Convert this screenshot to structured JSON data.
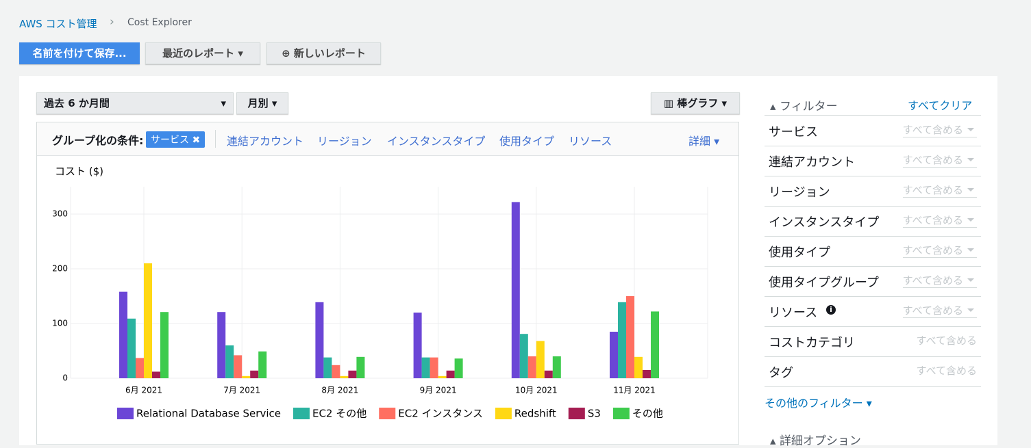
{
  "breadcrumb": {
    "home": "AWS コスト管理",
    "current": "Cost Explorer"
  },
  "buttons": {
    "save": "名前を付けて保存...",
    "recent": "最近のレポート",
    "new": "新しいレポート"
  },
  "controls": {
    "period": "過去 6 か月間",
    "granularity": "月別",
    "chart_type": "棒グラフ"
  },
  "group_by": {
    "label": "グループ化の条件:",
    "selected": "サービス",
    "options": [
      "連結アカウント",
      "リージョン",
      "インスタンスタイプ",
      "使用タイプ",
      "リソース"
    ],
    "more": "詳細"
  },
  "filters": {
    "title": "フィルター",
    "clear": "すべてクリア",
    "rows": [
      {
        "name": "サービス",
        "value": "すべて含める"
      },
      {
        "name": "連結アカウント",
        "value": "すべて含める"
      },
      {
        "name": "リージョン",
        "value": "すべて含める"
      },
      {
        "name": "インスタンスタイプ",
        "value": "すべて含める"
      },
      {
        "name": "使用タイプ",
        "value": "すべて含める"
      },
      {
        "name": "使用タイプグループ",
        "value": "すべて含める"
      },
      {
        "name": "リソース",
        "value": "すべて含める"
      },
      {
        "name": "コストカテゴリ",
        "value": "すべて含める"
      },
      {
        "name": "タグ",
        "value": "すべて含める"
      }
    ],
    "more": "その他のフィルター",
    "advanced": "詳細オプション"
  },
  "chart_data": {
    "type": "bar",
    "y_label": "コスト ($)",
    "categories": [
      "6月 2021",
      "7月 2021",
      "8月 2021",
      "9月 2021",
      "10月 2021",
      "11月 2021"
    ],
    "series": [
      {
        "name": "Relational Database Service",
        "color": "#6b46d6",
        "values": [
          158,
          121,
          139,
          120,
          322,
          85
        ]
      },
      {
        "name": "EC2 その他",
        "color": "#2bb3a0",
        "values": [
          109,
          60,
          38,
          38,
          81,
          139
        ]
      },
      {
        "name": "EC2 インスタンス",
        "color": "#ff6f61",
        "values": [
          37,
          42,
          24,
          38,
          40,
          150
        ]
      },
      {
        "name": "Redshift",
        "color": "#ffd814",
        "values": [
          210,
          4,
          4,
          4,
          68,
          39
        ]
      },
      {
        "name": "S3",
        "color": "#a51d52",
        "values": [
          12,
          14,
          14,
          14,
          14,
          15
        ]
      },
      {
        "name": "その他",
        "color": "#3ecb4d",
        "values": [
          121,
          49,
          39,
          36,
          40,
          122
        ]
      }
    ],
    "ylim": [
      0,
      350
    ],
    "yticks": [
      0,
      100,
      200,
      300
    ],
    "grid": true,
    "legend": "bottom"
  }
}
